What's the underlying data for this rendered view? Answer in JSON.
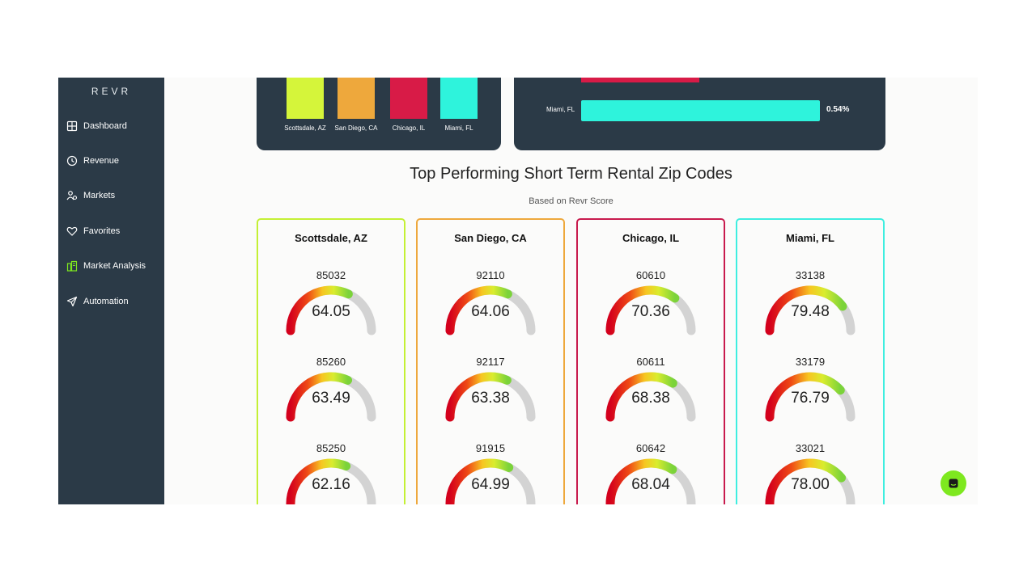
{
  "app": {
    "brand": "REVR"
  },
  "sidebar": {
    "items": [
      {
        "label": "Dashboard",
        "icon": "dashboard-icon"
      },
      {
        "label": "Revenue",
        "icon": "revenue-icon"
      },
      {
        "label": "Markets",
        "icon": "markets-icon"
      },
      {
        "label": "Favorites",
        "icon": "heart-icon"
      },
      {
        "label": "Market Analysis",
        "icon": "market-analysis-icon",
        "highlighted": true
      },
      {
        "label": "Automation",
        "icon": "send-icon"
      }
    ]
  },
  "bar_chart": {
    "bars": [
      {
        "label": "Scottsdale, AZ",
        "color": "#d5f53a"
      },
      {
        "label": "San Diego, CA",
        "color": "#eea83c"
      },
      {
        "label": "Chicago, IL",
        "color": "#d81b47"
      },
      {
        "label": "Miami, FL",
        "color": "#2ef3dc"
      }
    ]
  },
  "hbar_chart": {
    "visible_label": "Miami, FL",
    "visible_value": "0.54%",
    "visible_color": "#2ef3dc"
  },
  "section": {
    "title": "Top Performing Short Term Rental Zip Codes",
    "subtitle": "Based on Revr Score"
  },
  "markets": [
    {
      "name": "Scottsdale, AZ",
      "color": "#c4f034",
      "zips": [
        {
          "zip": "85032",
          "score": "64.05"
        },
        {
          "zip": "85260",
          "score": "63.49"
        },
        {
          "zip": "85250",
          "score": "62.16"
        }
      ]
    },
    {
      "name": "San Diego, CA",
      "color": "#eea83c",
      "zips": [
        {
          "zip": "92110",
          "score": "64.06"
        },
        {
          "zip": "92117",
          "score": "63.38"
        },
        {
          "zip": "91915",
          "score": "64.99"
        }
      ]
    },
    {
      "name": "Chicago, IL",
      "color": "#c81a4d",
      "zips": [
        {
          "zip": "60610",
          "score": "70.36"
        },
        {
          "zip": "60611",
          "score": "68.38"
        },
        {
          "zip": "60642",
          "score": "68.04"
        }
      ]
    },
    {
      "name": "Miami, FL",
      "color": "#3eeee0",
      "zips": [
        {
          "zip": "33138",
          "score": "79.48"
        },
        {
          "zip": "33179",
          "score": "76.79"
        },
        {
          "zip": "33021",
          "score": "78.00"
        }
      ]
    }
  ],
  "chat": {
    "icon": "chat-icon"
  }
}
